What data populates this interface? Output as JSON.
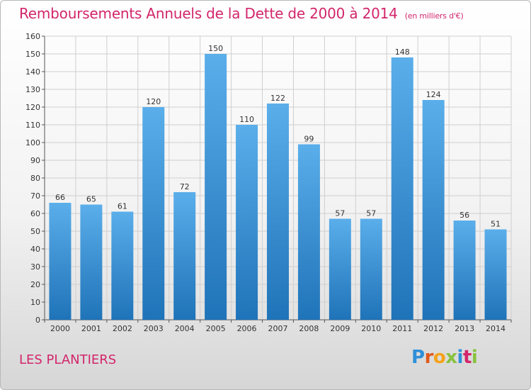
{
  "title": "Remboursements Annuels de la Dette de 2000 à 2014",
  "subtitle": "(en milliers d'€)",
  "commune": "LES PLANTIERS",
  "logo": {
    "letters": [
      "P",
      "r",
      "o",
      "x",
      "i",
      "t",
      "i"
    ],
    "colors": [
      "#2e8fd9",
      "#e05a1c",
      "#f4a21a",
      "#88c23f",
      "#2e8fd9",
      "#d2266b",
      "#88c23f"
    ]
  },
  "colors": {
    "title": "#d2266b",
    "bar_light": "#5aaeea",
    "bar_dark": "#1f73b8"
  },
  "chart_data": {
    "type": "bar",
    "categories": [
      "2000",
      "2001",
      "2002",
      "2003",
      "2004",
      "2005",
      "2006",
      "2007",
      "2008",
      "2009",
      "2010",
      "2011",
      "2012",
      "2013",
      "2014"
    ],
    "values": [
      66,
      65,
      61,
      120,
      72,
      150,
      110,
      122,
      99,
      57,
      57,
      148,
      124,
      56,
      51
    ],
    "xlabel": "",
    "ylabel": "",
    "ylim": [
      0,
      160
    ],
    "yticks": [
      0,
      10,
      20,
      30,
      40,
      50,
      60,
      70,
      80,
      90,
      100,
      110,
      120,
      130,
      140,
      150,
      160
    ],
    "grid": true,
    "legend": "none"
  }
}
